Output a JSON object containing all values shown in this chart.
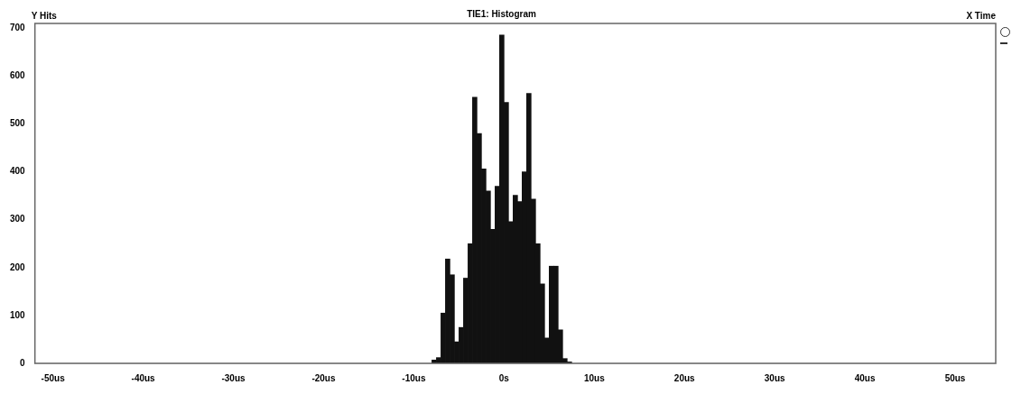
{
  "chart_data": {
    "type": "histogram",
    "title": "TIE1: Histogram",
    "ylabel": "Y Hits",
    "xlabel": "X Time",
    "bins": [
      -8,
      -7.5,
      -7,
      -6.5,
      -6,
      -5.5,
      -5,
      -4.5,
      -4,
      -3.5,
      -3,
      -2.5,
      -2,
      -1.5,
      -1,
      -0.5,
      0,
      0.5,
      1,
      1.5,
      2,
      2.5,
      3,
      3.5,
      4,
      4.5,
      5,
      5.5,
      6,
      6.5,
      7,
      7.5
    ],
    "values": [
      7,
      12,
      105,
      218,
      185,
      45,
      75,
      178,
      250,
      556,
      480,
      406,
      360,
      280,
      370,
      686,
      545,
      296,
      351,
      338,
      400,
      564,
      343,
      250,
      166,
      53,
      203,
      203,
      70,
      10,
      3
    ],
    "color": "#111111",
    "xlim": [
      -52,
      54.5
    ],
    "xticks": [
      {
        "value": -50,
        "label": "-50us"
      },
      {
        "value": -40,
        "label": "-40us"
      },
      {
        "value": -30,
        "label": "-30us"
      },
      {
        "value": -20,
        "label": "-20us"
      },
      {
        "value": -10,
        "label": "-10us"
      },
      {
        "value": 0,
        "label": "0s"
      },
      {
        "value": 10,
        "label": "10us"
      },
      {
        "value": 20,
        "label": "20us"
      },
      {
        "value": 30,
        "label": "30us"
      },
      {
        "value": 40,
        "label": "40us"
      },
      {
        "value": 50,
        "label": "50us"
      }
    ],
    "ylim": [
      0,
      710
    ],
    "yticks": [
      0,
      100,
      200,
      300,
      400,
      500,
      600,
      700
    ],
    "grid": false
  }
}
